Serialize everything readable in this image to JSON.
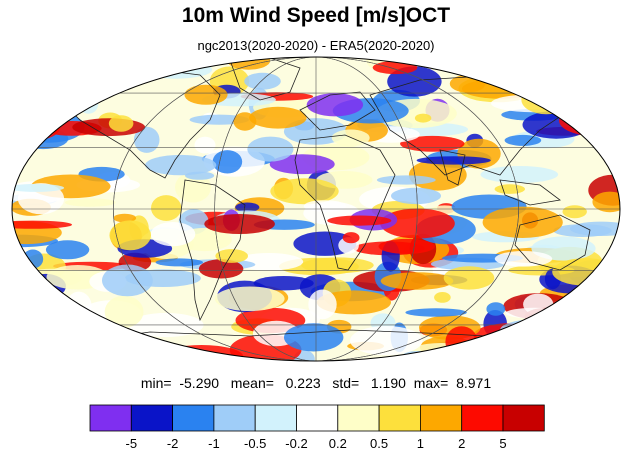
{
  "header": {
    "title": "10m Wind Speed [m/s]OCT",
    "subtitle": "ngc2013(2020-2020) - ERA5(2020-2020)"
  },
  "stats": {
    "min_label": "min=",
    "min_value": "-5.290",
    "mean_label": "mean=",
    "mean_value": "0.223",
    "std_label": "std=",
    "std_value": "1.190",
    "max_label": "max=",
    "max_value": "8.971"
  },
  "colorbar": {
    "colors": [
      "#7f2ff0",
      "#0a14c8",
      "#2a82f0",
      "#9fcdf8",
      "#d2f2fc",
      "#ffffff",
      "#fefec8",
      "#fde03c",
      "#fda800",
      "#fd0a00",
      "#c80000"
    ],
    "tick_labels": [
      "-5",
      "-2",
      "-1",
      "-0.5",
      "-0.2",
      "0.2",
      "0.5",
      "1",
      "2",
      "5"
    ]
  },
  "map": {
    "projection": "mollweide",
    "gridlines": true,
    "coastlines": true
  }
}
